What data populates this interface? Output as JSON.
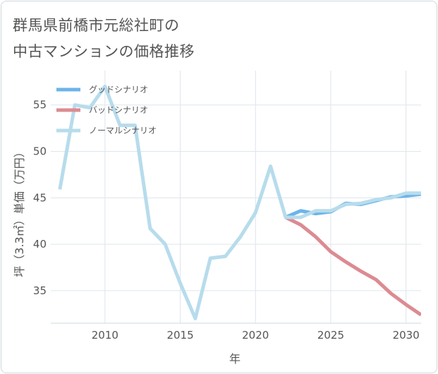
{
  "chart_data": {
    "type": "line",
    "title": [
      "群馬県前橋市元総社町の",
      "中古マンションの価格推移"
    ],
    "xlabel": "年",
    "ylabel": "坪（3.3㎡）単価（万円）",
    "xlim": [
      2006.4,
      2031
    ],
    "ylim": [
      31.5,
      58.7
    ],
    "xticks": [
      2010,
      2015,
      2020,
      2025,
      2030
    ],
    "yticks": [
      35,
      40,
      45,
      50,
      55
    ],
    "grid": true,
    "legend_position": "top-left",
    "series": [
      {
        "name": "グッドシナリオ",
        "color": "#6cb4ea",
        "x": [
          2022,
          2023,
          2024,
          2025,
          2026,
          2027,
          2028,
          2029,
          2030,
          2031
        ],
        "y": [
          42.9,
          43.6,
          43.3,
          43.5,
          44.4,
          44.3,
          44.7,
          45.1,
          45.2,
          45.4
        ]
      },
      {
        "name": "バッドシナリオ",
        "color": "#dc8b92",
        "x": [
          2022,
          2023,
          2024,
          2025,
          2026,
          2027,
          2028,
          2029,
          2030,
          2031
        ],
        "y": [
          42.9,
          42.1,
          40.8,
          39.2,
          38.1,
          37.1,
          36.2,
          34.7,
          33.5,
          32.4
        ]
      },
      {
        "name": "ノーマルシナリオ",
        "color": "#b7dcec",
        "x": [
          2007,
          2008,
          2009,
          2010,
          2011,
          2012,
          2013,
          2014,
          2015,
          2016,
          2017,
          2018,
          2019,
          2020,
          2021,
          2022,
          2023,
          2024,
          2025,
          2026,
          2027,
          2028,
          2029,
          2030,
          2031
        ],
        "y": [
          45.9,
          55.0,
          54.7,
          57.0,
          52.8,
          52.8,
          41.7,
          40.0,
          35.8,
          32.0,
          38.5,
          38.7,
          40.8,
          43.4,
          48.4,
          42.9,
          42.9,
          43.6,
          43.6,
          44.3,
          44.4,
          44.8,
          45.0,
          45.5,
          45.5
        ]
      }
    ]
  }
}
